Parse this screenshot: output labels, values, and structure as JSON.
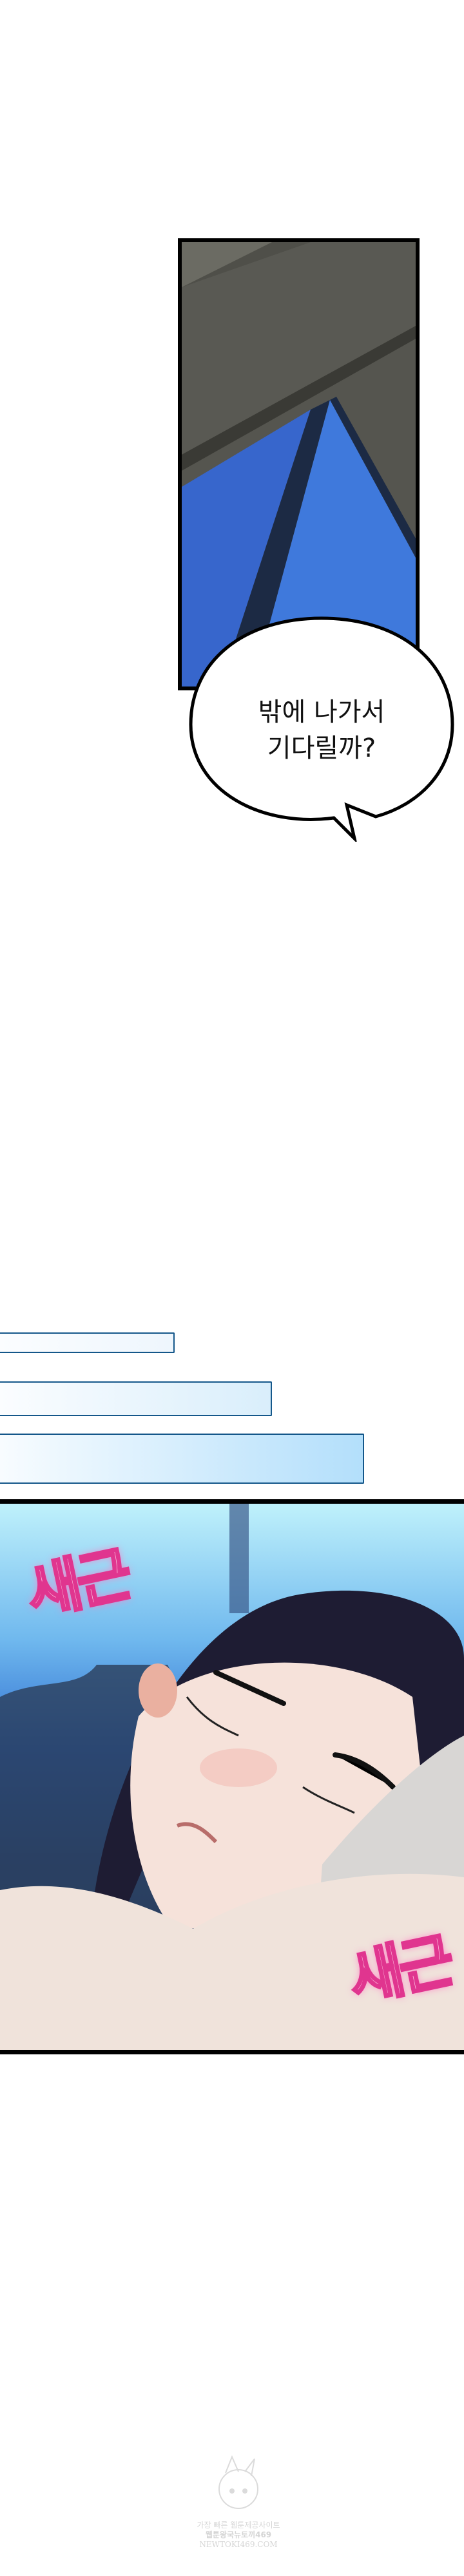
{
  "panels": [
    {
      "id": "window-panel",
      "scene": "concrete-ceiling-and-blue-window"
    },
    {
      "id": "sleeping-panel",
      "scene": "woman-sleeping-on-pillow"
    }
  ],
  "speech_bubble": {
    "line1": "밖에 나가서",
    "line2": "기다릴까?"
  },
  "sound_effects": [
    "새근",
    "새근"
  ],
  "watermark": {
    "line1": "가장 빠른 웹툰제공사이트",
    "line2": "웹툰왕국뉴토끼469",
    "line3": "NEWTOKI469.COM"
  },
  "colors": {
    "sfx_pink": "#e0358f",
    "strip_border": "#14578a",
    "window_blue": "#3a6fd6",
    "hair": "#1e1c33"
  }
}
